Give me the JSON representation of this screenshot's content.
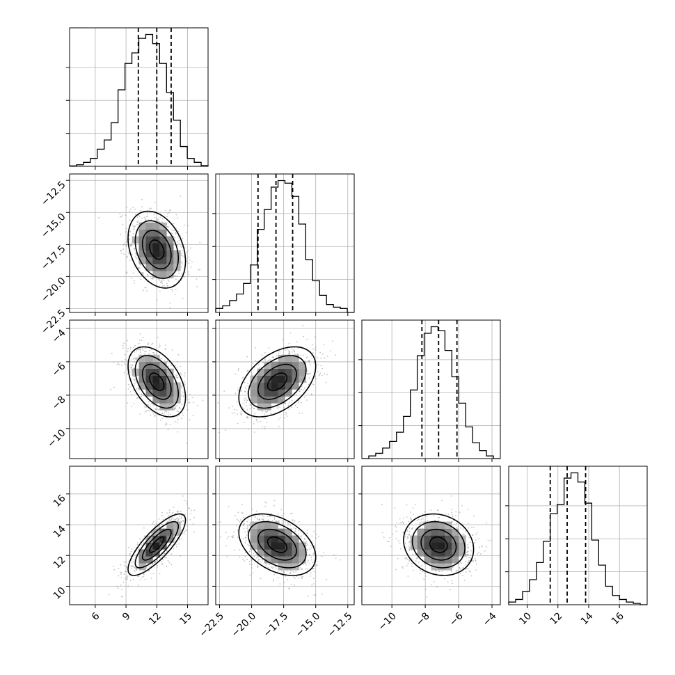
{
  "chart_data": {
    "type": "corner",
    "grid": true,
    "parameters": [
      {
        "range": [
          3.5,
          17.0
        ],
        "ticks": [
          6,
          9,
          12,
          15
        ],
        "tick_labels": [
          "6",
          "9",
          "12",
          "15"
        ],
        "quantiles": [
          10.2,
          12.0,
          13.4
        ],
        "histogram": {
          "bin_edges": [
            3.5,
            4.175,
            4.85,
            5.525,
            6.2,
            6.875,
            7.55,
            8.225,
            8.9,
            9.575,
            10.25,
            10.925,
            11.6,
            12.275,
            12.95,
            13.625,
            14.3,
            14.975,
            15.65,
            16.325,
            17.0
          ],
          "counts": [
            0.003,
            0.012,
            0.03,
            0.06,
            0.13,
            0.2,
            0.33,
            0.58,
            0.78,
            0.86,
            0.97,
            1.0,
            0.93,
            0.78,
            0.56,
            0.35,
            0.15,
            0.06,
            0.03,
            0.005
          ]
        }
      },
      {
        "range": [
          -22.8,
          -12.0
        ],
        "ticks": [
          -22.5,
          -20.0,
          -17.5,
          -15.0,
          -12.5
        ],
        "tick_labels": [
          "−22.5",
          "−20.0",
          "−17.5",
          "−15.0",
          "−12.5"
        ],
        "quantiles": [
          -19.5,
          -18.1,
          -16.8
        ],
        "histogram": {
          "bin_edges": [
            -22.8,
            -22.26,
            -21.72,
            -21.18,
            -20.64,
            -20.1,
            -19.56,
            -19.02,
            -18.48,
            -17.94,
            -17.4,
            -16.86,
            -16.32,
            -15.78,
            -15.24,
            -14.7,
            -14.16,
            -13.62,
            -13.08,
            -12.54,
            -12.0
          ],
          "counts": [
            0.03,
            0.05,
            0.09,
            0.14,
            0.22,
            0.36,
            0.63,
            0.78,
            0.95,
            1.0,
            0.98,
            0.88,
            0.67,
            0.4,
            0.24,
            0.13,
            0.06,
            0.04,
            0.03,
            0.0
          ]
        }
      },
      {
        "range": [
          -11.8,
          -3.5
        ],
        "ticks": [
          -10,
          -8,
          -6,
          -4
        ],
        "tick_labels": [
          "−10",
          "−8",
          "−6",
          "−4"
        ],
        "quantiles": [
          -8.2,
          -7.2,
          -6.1
        ],
        "histogram": {
          "bin_edges": [
            -11.8,
            -11.385,
            -10.97,
            -10.555,
            -10.14,
            -9.725,
            -9.31,
            -8.895,
            -8.48,
            -8.065,
            -7.65,
            -7.235,
            -6.82,
            -6.405,
            -5.99,
            -5.575,
            -5.16,
            -4.745,
            -4.33,
            -3.915,
            -3.5
          ],
          "counts": [
            0.0,
            0.02,
            0.04,
            0.08,
            0.13,
            0.2,
            0.32,
            0.52,
            0.78,
            0.95,
            1.0,
            0.97,
            0.82,
            0.62,
            0.42,
            0.24,
            0.12,
            0.06,
            0.02,
            0.0
          ]
        }
      },
      {
        "range": [
          8.8,
          17.8
        ],
        "ticks": [
          10,
          12,
          14,
          16
        ],
        "tick_labels": [
          "10",
          "12",
          "14",
          "16"
        ],
        "quantiles": [
          11.5,
          12.6,
          13.8
        ],
        "histogram": {
          "bin_edges": [
            8.8,
            9.25,
            9.7,
            10.15,
            10.6,
            11.05,
            11.5,
            11.95,
            12.4,
            12.85,
            13.3,
            13.75,
            14.2,
            14.65,
            15.1,
            15.55,
            16.0,
            16.45,
            16.9,
            17.35,
            17.8
          ],
          "counts": [
            0.02,
            0.04,
            0.1,
            0.19,
            0.32,
            0.48,
            0.69,
            0.76,
            0.96,
            1.0,
            0.93,
            0.77,
            0.49,
            0.3,
            0.14,
            0.07,
            0.04,
            0.02,
            0.01,
            0.0
          ]
        }
      }
    ],
    "pairs": [
      {
        "x_param": 0,
        "y_param": 1,
        "center": [
          12.0,
          -17.9
        ],
        "sd": [
          1.4,
          1.5
        ],
        "rho": -0.3
      },
      {
        "x_param": 0,
        "y_param": 2,
        "center": [
          12.0,
          -7.2
        ],
        "sd": [
          1.4,
          1.05
        ],
        "rho": -0.45
      },
      {
        "x_param": 1,
        "y_param": 2,
        "center": [
          -18.0,
          -7.2
        ],
        "sd": [
          1.5,
          1.05
        ],
        "rho": 0.45
      },
      {
        "x_param": 0,
        "y_param": 3,
        "center": [
          12.0,
          12.7
        ],
        "sd": [
          1.4,
          1.0
        ],
        "rho": 0.8
      },
      {
        "x_param": 1,
        "y_param": 3,
        "center": [
          -18.0,
          12.7
        ],
        "sd": [
          1.5,
          1.0
        ],
        "rho": -0.4
      },
      {
        "x_param": 2,
        "y_param": 3,
        "center": [
          -7.2,
          12.7
        ],
        "sd": [
          1.05,
          1.0
        ],
        "rho": -0.15
      }
    ],
    "contour_levels_sigma": [
      0.5,
      1.0,
      1.5,
      2.0
    ]
  }
}
